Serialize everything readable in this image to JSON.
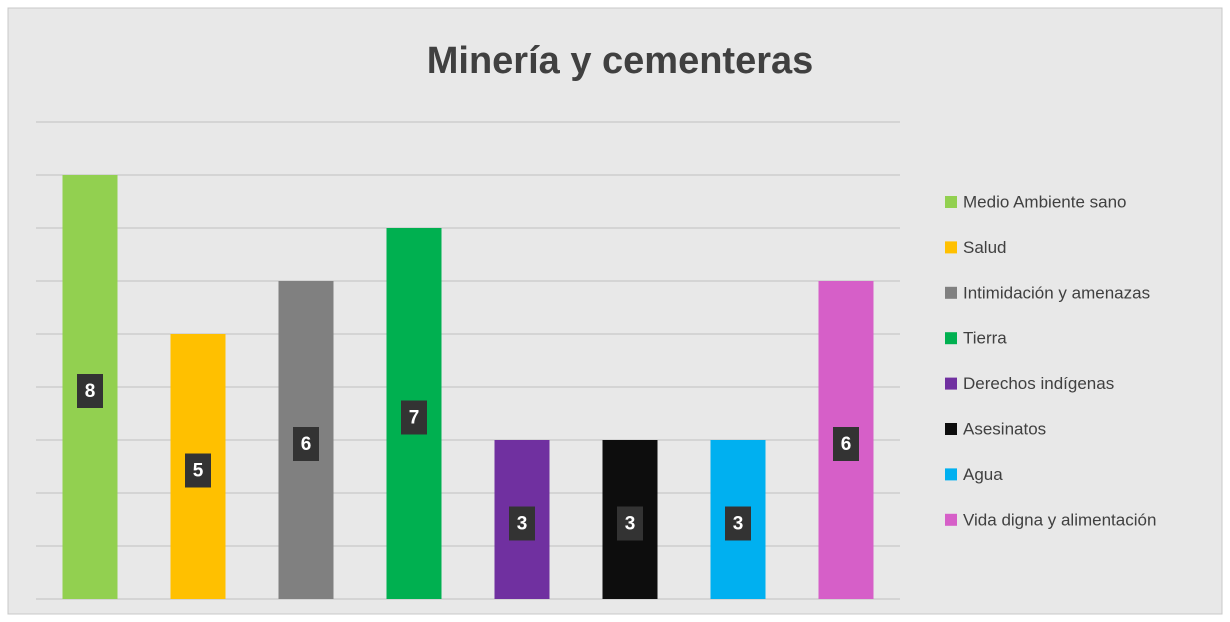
{
  "chart_data": {
    "type": "bar",
    "title": "Minería y cementeras",
    "categories": [
      "Medio Ambiente sano",
      "Salud",
      "Intimidación y amenazas",
      "Tierra",
      "Derechos indígenas",
      "Asesinatos",
      "Agua",
      "Vida digna y alimentación"
    ],
    "values": [
      8,
      5,
      6,
      7,
      3,
      3,
      3,
      6
    ],
    "colors": [
      "#92d050",
      "#ffc000",
      "#808080",
      "#00b050",
      "#7030a0",
      "#0d0d0d",
      "#00b0f0",
      "#d65fc8"
    ],
    "ylim": [
      0,
      9
    ],
    "yticks": [
      0,
      1,
      2,
      3,
      4,
      5,
      6,
      7,
      8,
      9
    ],
    "grid": true,
    "legend": "right"
  }
}
